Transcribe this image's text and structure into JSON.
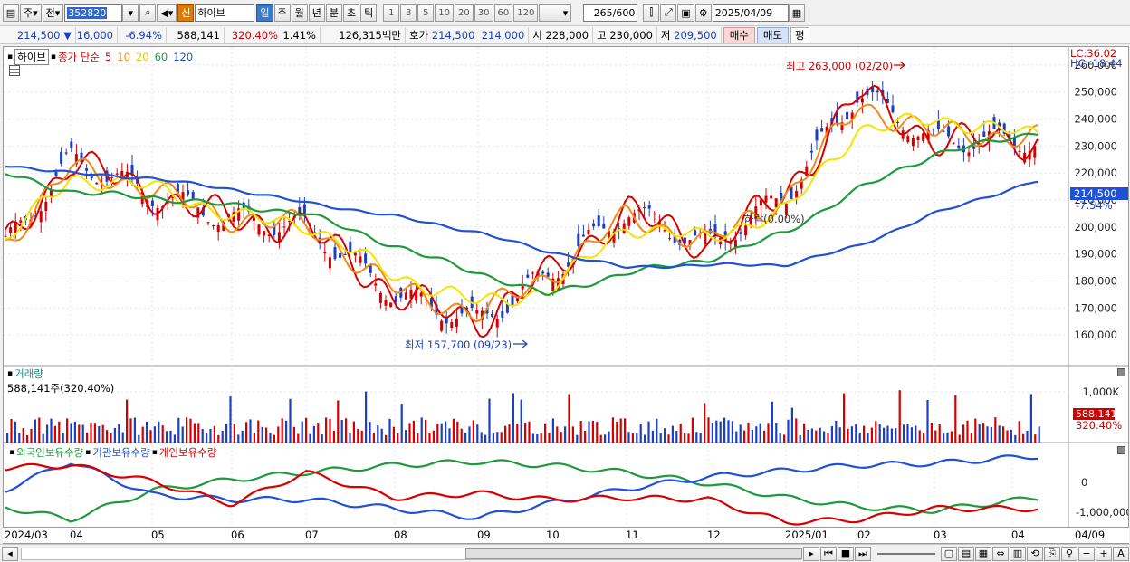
{
  "toolbar": {
    "period_label": "주",
    "prev_label": "전",
    "code": "352820",
    "name": "하이브",
    "new_badge": "신",
    "period_buttons": [
      "일",
      "주",
      "월",
      "년",
      "분",
      "초",
      "틱"
    ],
    "interval_buttons": [
      "1",
      "3",
      "5",
      "10",
      "20",
      "30",
      "60",
      "120"
    ],
    "count_value": "265",
    "count_total": "/600",
    "date_value": "2025/04/09"
  },
  "quote": {
    "price": "214,500",
    "change": "16,000",
    "change_pct": "-6.94%",
    "volume": "588,141",
    "volume_ratio": "320.40%",
    "turnover_pct": "1.41%",
    "amount": "126,315백만",
    "bid_label": "호가",
    "bid1": "214,500",
    "bid2": "214,000",
    "open_label": "시",
    "open": "228,000",
    "high_label": "고",
    "high": "230,000",
    "low_label": "저",
    "low": "209,500",
    "sell_label": "매수",
    "buy_label": "매도",
    "flat_label": "평"
  },
  "main_pane": {
    "name_label": "하이브",
    "legend_prefix": "종가 단순",
    "ma_labels": [
      "5",
      "10",
      "20",
      "60",
      "120"
    ],
    "lc": "LC:36.02",
    "hc": "HC:-18.44",
    "current_price_tag": "214,500",
    "current_pct_tag": "-7.54%",
    "high_annotation": "최고 263,000 (02/20)",
    "low_annotation": "최저 157,700 (09/23)",
    "mid_annotation": "하락(0.00%)",
    "y_ticks": [
      "260,000",
      "250,000",
      "240,000",
      "230,000",
      "220,000",
      "210,000",
      "200,000",
      "190,000",
      "180,000",
      "170,000",
      "160,000"
    ]
  },
  "volume_pane": {
    "title": "거래량",
    "value_text": "588,141주(320.40%)",
    "y_tick": "1,000K",
    "tag_value": "588,141",
    "tag_pct": "320.40%"
  },
  "holdings_pane": {
    "legend": [
      "외국인보유수량",
      "기관보유수량",
      "개인보유수량"
    ],
    "y_ticks": [
      "0",
      "-1,000,000"
    ]
  },
  "x_axis": {
    "labels": [
      "2024/03",
      "04",
      "05",
      "06",
      "07",
      "08",
      "09",
      "10",
      "11",
      "12",
      "2025/01",
      "02",
      "03",
      "04"
    ],
    "right_label": "04/09"
  },
  "colors": {
    "up": "#d40000",
    "down": "#1a3fc2",
    "ma5": "#d80000",
    "ma10": "#f08a18",
    "ma20": "#f4e400",
    "ma60": "#1e9a3c",
    "ma120": "#2050d8",
    "foreign": "#1e9a3c",
    "institution": "#2050d8",
    "individual": "#d80000"
  },
  "chart_data": {
    "type": "line",
    "title": "하이브",
    "ylim": [
      150000,
      265000
    ],
    "x": [
      "2024/03",
      "04",
      "05",
      "06",
      "07",
      "08",
      "09",
      "10",
      "11",
      "12",
      "2025/01",
      "02",
      "03",
      "04"
    ],
    "series": [
      {
        "name": "종가",
        "values": [
          190000,
          232000,
          213000,
          204000,
          201000,
          172000,
          167000,
          184000,
          205000,
          193000,
          210000,
          245000,
          234000,
          214500
        ]
      },
      {
        "name": "5",
        "values": [
          192000,
          225000,
          212000,
          203000,
          200000,
          175000,
          165000,
          182000,
          206000,
          193000,
          212000,
          250000,
          232000,
          232000
        ]
      },
      {
        "name": "10",
        "values": [
          193000,
          222000,
          214000,
          203000,
          201000,
          177000,
          168000,
          181000,
          204000,
          194000,
          211000,
          245000,
          235000,
          233000
        ]
      },
      {
        "name": "20",
        "values": [
          195000,
          218000,
          215000,
          204000,
          201000,
          182000,
          172000,
          176000,
          200000,
          196000,
          206000,
          236000,
          240000,
          234000
        ]
      },
      {
        "name": "60",
        "values": [
          220000,
          213000,
          211000,
          208000,
          205000,
          193000,
          183000,
          175000,
          183000,
          188000,
          198000,
          214000,
          227000,
          235000
        ]
      },
      {
        "name": "120",
        "values": [
          223000,
          220000,
          218000,
          214000,
          209000,
          204000,
          198000,
          191000,
          185000,
          186000,
          186000,
          193000,
          205000,
          217000
        ]
      }
    ],
    "annotations": [
      "최고 263,000 (02/20)",
      "최저 157,700 (09/23)"
    ]
  }
}
